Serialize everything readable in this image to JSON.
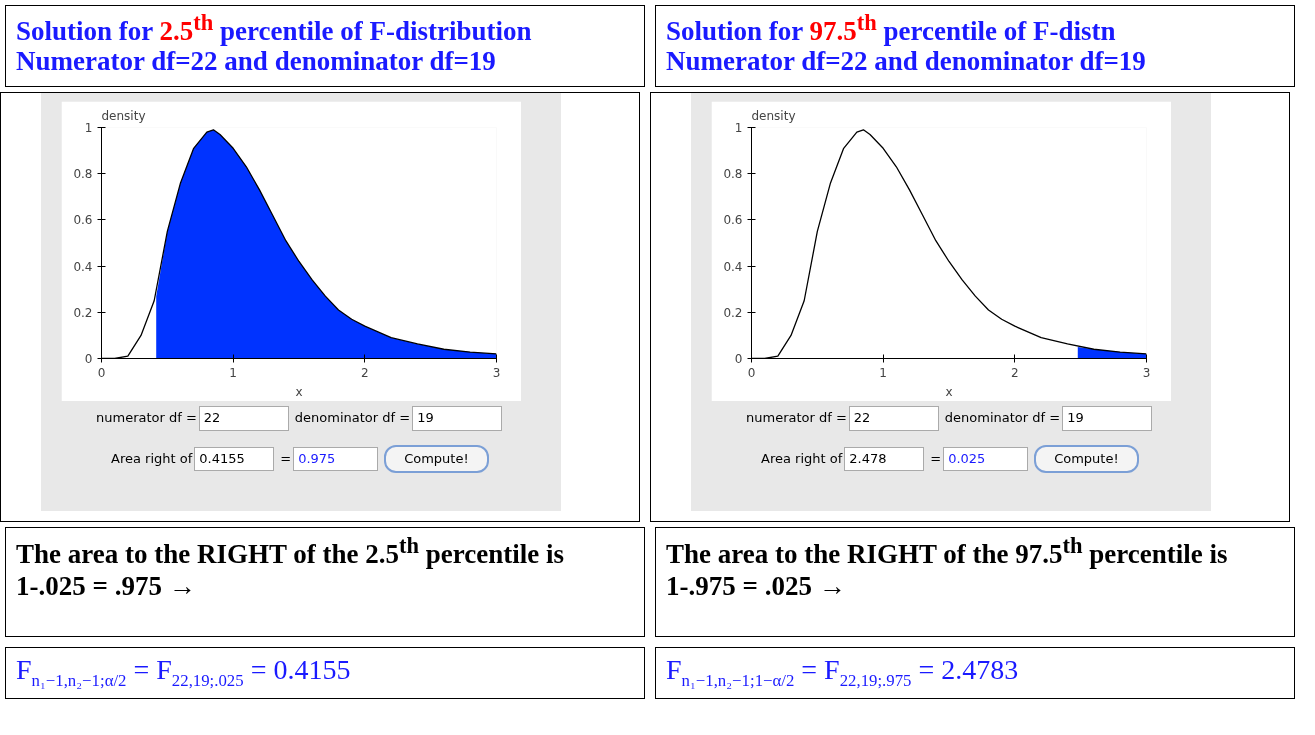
{
  "chart_data": [
    {
      "type": "line",
      "title": "Solution for 2.5$^{th}$ percentile of  F-distribution",
      "subtitle": "Numerator df=22 and denominator df=19",
      "xlabel": "x",
      "ylabel": "density",
      "xlim": [
        0,
        3
      ],
      "ylim": [
        0,
        1
      ],
      "xticks": [
        0,
        1,
        2,
        3
      ],
      "yticks": [
        0,
        0.2,
        0.4,
        0.6,
        0.8,
        1
      ],
      "grid": false,
      "series": [
        {
          "type": "area",
          "color": "#0033ff",
          "x": [
            0.4155,
            0.5,
            0.6,
            0.7,
            0.8,
            0.85,
            0.9,
            1.0,
            1.1,
            1.2,
            1.3,
            1.4,
            1.5,
            1.6,
            1.7,
            1.8,
            1.9,
            2.0,
            2.2,
            2.4,
            2.6,
            2.8,
            3.0
          ],
          "values": [
            0.27,
            0.55,
            0.76,
            0.91,
            0.98,
            0.99,
            0.97,
            0.91,
            0.83,
            0.73,
            0.62,
            0.51,
            0.42,
            0.34,
            0.27,
            0.21,
            0.17,
            0.14,
            0.09,
            0.063,
            0.04,
            0.028,
            0.02
          ]
        },
        {
          "color": "#000000",
          "x": [
            0,
            0.1,
            0.2,
            0.3,
            0.4,
            0.5,
            0.6,
            0.7,
            0.8,
            0.85,
            0.9,
            1.0,
            1.1,
            1.2,
            1.3,
            1.4,
            1.5,
            1.6,
            1.7,
            1.8,
            1.9,
            2.0,
            2.2,
            2.4,
            2.6,
            2.8,
            3.0
          ],
          "values": [
            0,
            0,
            0.01,
            0.1,
            0.25,
            0.55,
            0.76,
            0.91,
            0.98,
            0.99,
            0.97,
            0.91,
            0.83,
            0.73,
            0.62,
            0.51,
            0.42,
            0.34,
            0.27,
            0.21,
            0.17,
            0.14,
            0.09,
            0.063,
            0.04,
            0.028,
            0.02
          ]
        }
      ],
      "annotations": [
        "numerator df =",
        "22",
        "denominator df =",
        "19",
        "Area right of",
        "0.4155",
        "=",
        "0.975",
        "Compute!",
        "The area to the RIGHT of the 2.5$^{th}$ percentile is 1-.025 = .975  →",
        "F$_{n₁−1,n₂−1;α/2}$ = F$_{22,19;.025}$ = 0.4155"
      ]
    },
    {
      "type": "line",
      "title": "Solution for 97.5$^{th}$ percentile of  F-distn",
      "subtitle": "Numerator df=22 and denominator df=19",
      "xlabel": "x",
      "ylabel": "density",
      "xlim": [
        0,
        3
      ],
      "ylim": [
        0,
        1
      ],
      "xticks": [
        0,
        1,
        2,
        3
      ],
      "yticks": [
        0,
        0.2,
        0.4,
        0.6,
        0.8,
        1
      ],
      "grid": false,
      "series": [
        {
          "type": "area",
          "color": "#0033ff",
          "x": [
            2.478,
            2.6,
            2.8,
            3.0
          ],
          "values": [
            0.05,
            0.04,
            0.028,
            0.02
          ]
        },
        {
          "color": "#000000",
          "x": [
            0,
            0.1,
            0.2,
            0.3,
            0.4,
            0.5,
            0.6,
            0.7,
            0.8,
            0.85,
            0.9,
            1.0,
            1.1,
            1.2,
            1.3,
            1.4,
            1.5,
            1.6,
            1.7,
            1.8,
            1.9,
            2.0,
            2.2,
            2.4,
            2.6,
            2.8,
            3.0
          ],
          "values": [
            0,
            0,
            0.01,
            0.1,
            0.25,
            0.55,
            0.76,
            0.91,
            0.98,
            0.99,
            0.97,
            0.91,
            0.83,
            0.73,
            0.62,
            0.51,
            0.42,
            0.34,
            0.27,
            0.21,
            0.17,
            0.14,
            0.09,
            0.063,
            0.04,
            0.028,
            0.02
          ]
        }
      ],
      "annotations": [
        "numerator df =",
        "22",
        "denominator df =",
        "19",
        "Area right of",
        "2.478",
        "=",
        "0.025",
        "Compute!",
        "The area to the RIGHT of the 97.5$^{th}$ percentile is 1-.975 = .025  →",
        "F$_{n₁−1,n₂−1;1−α/2}$ = F$_{22,19;.975}$ = 2.4783"
      ]
    }
  ]
}
